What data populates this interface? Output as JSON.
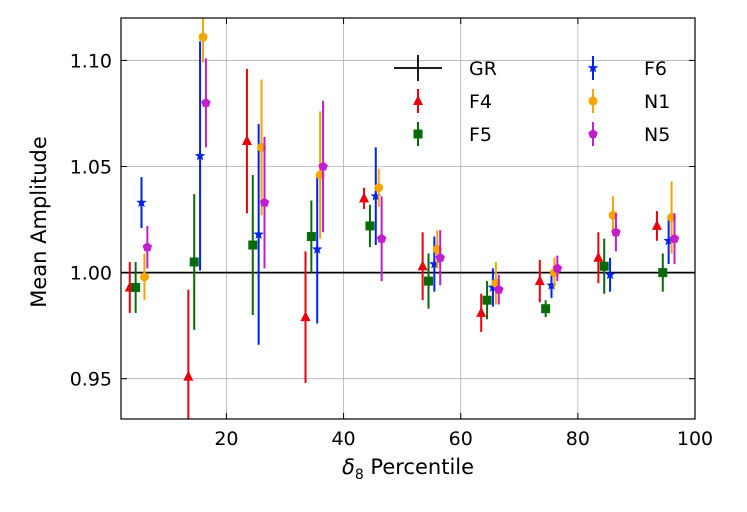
{
  "chart_data": {
    "type": "scatter",
    "title": "",
    "xlabel_symbol": "δ",
    "xlabel_subscript": "8",
    "xlabel_rest": " Percentile",
    "ylabel": "Mean Amplitude",
    "xlim": [
      2,
      100
    ],
    "ylim": [
      0.931,
      1.12
    ],
    "xticks": [
      20,
      40,
      60,
      80,
      100
    ],
    "xtick_labels": [
      "20",
      "40",
      "60",
      "80",
      "100"
    ],
    "yticks": [
      0.95,
      1.0,
      1.05,
      1.1
    ],
    "ytick_labels": [
      "0.95",
      "1.00",
      "1.05",
      "1.10"
    ],
    "grid": true,
    "legend_position": "top-right",
    "reference_line": {
      "name": "GR",
      "y": 1.0,
      "color": "#000000"
    },
    "series": [
      {
        "name": "F4",
        "color": "#e8000b",
        "marker": "triangle",
        "x": [
          3.5,
          13.5,
          23.5,
          33.5,
          43.5,
          53.5,
          63.5,
          73.5,
          83.5,
          93.5
        ],
        "y": [
          0.993,
          0.951,
          1.062,
          0.979,
          1.035,
          1.003,
          0.981,
          0.996,
          1.007,
          1.022
        ],
        "err": [
          0.012,
          0.041,
          0.034,
          0.031,
          0.005,
          0.016,
          0.009,
          0.01,
          0.012,
          0.007
        ]
      },
      {
        "name": "F5",
        "color": "#0a6a0a",
        "marker": "square",
        "x": [
          4.5,
          14.5,
          24.5,
          34.5,
          44.5,
          54.5,
          64.5,
          74.5,
          84.5,
          94.5
        ],
        "y": [
          0.993,
          1.005,
          1.013,
          1.017,
          1.022,
          0.996,
          0.987,
          0.983,
          1.003,
          1.0
        ],
        "err": [
          0.012,
          0.032,
          0.033,
          0.017,
          0.01,
          0.013,
          0.009,
          0.004,
          0.013,
          0.009
        ]
      },
      {
        "name": "F6",
        "color": "#0022ee",
        "marker": "star",
        "x": [
          5.5,
          15.5,
          25.5,
          35.5,
          45.5,
          55.5,
          65.5,
          75.5,
          85.5,
          95.5
        ],
        "y": [
          1.033,
          1.055,
          1.018,
          1.011,
          1.036,
          1.004,
          0.993,
          0.994,
          0.999,
          1.015
        ],
        "err": [
          0.012,
          0.054,
          0.052,
          0.035,
          0.023,
          0.013,
          0.009,
          0.006,
          0.008,
          0.011
        ]
      },
      {
        "name": "N1",
        "color": "#f5a500",
        "marker": "circle",
        "x": [
          6.0,
          16.0,
          26.0,
          36.0,
          46.0,
          56.0,
          66.0,
          76.0,
          86.0,
          96.0
        ],
        "y": [
          0.998,
          1.111,
          1.059,
          1.046,
          1.04,
          1.011,
          0.995,
          1.0,
          1.027,
          1.026
        ],
        "err": [
          0.011,
          0.012,
          0.032,
          0.03,
          0.009,
          0.009,
          0.01,
          0.007,
          0.009,
          0.017
        ]
      },
      {
        "name": "N5",
        "color": "#c21ecb",
        "marker": "pentagon",
        "x": [
          6.5,
          16.5,
          26.5,
          36.5,
          46.5,
          56.5,
          66.5,
          76.5,
          86.5,
          96.5
        ],
        "y": [
          1.012,
          1.08,
          1.033,
          1.05,
          1.016,
          1.007,
          0.992,
          1.002,
          1.019,
          1.016
        ],
        "err": [
          0.01,
          0.021,
          0.031,
          0.031,
          0.02,
          0.013,
          0.007,
          0.006,
          0.009,
          0.012
        ]
      }
    ]
  }
}
